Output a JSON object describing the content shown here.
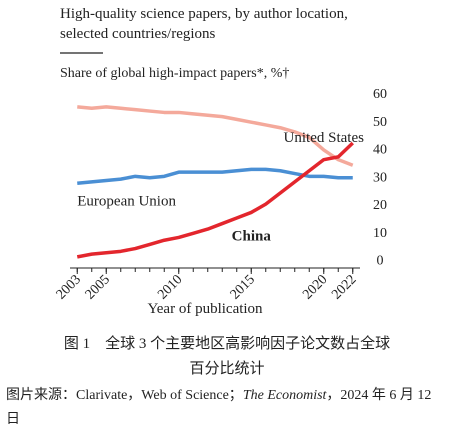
{
  "chart_data": {
    "type": "line",
    "title": [
      "High-quality science papers, by author location,",
      "selected countries/regions"
    ],
    "subtitle": "Share of global high-impact papers*, %†",
    "x_label": "Year of publication",
    "x": [
      2003,
      2004,
      2005,
      2006,
      2007,
      2008,
      2009,
      2010,
      2011,
      2012,
      2013,
      2014,
      2015,
      2016,
      2017,
      2018,
      2019,
      2020,
      2021,
      2022
    ],
    "series": [
      {
        "name": "United States",
        "color": "#f4a99b",
        "values": [
          55,
          54.5,
          55,
          54.5,
          54,
          53.5,
          53,
          53,
          52.5,
          52,
          51.5,
          50.5,
          49.5,
          48.5,
          47.5,
          46,
          44,
          39.5,
          36,
          34
        ]
      },
      {
        "name": "European Union",
        "color": "#4a8fd4",
        "values": [
          27.5,
          28,
          28.5,
          29,
          30,
          29.5,
          30,
          31.5,
          31.5,
          31.5,
          31.5,
          32,
          32.5,
          32.5,
          32,
          31,
          30,
          30,
          29.5,
          29.5
        ]
      },
      {
        "name": "China",
        "color": "#e3262d",
        "values": [
          1,
          2,
          2.5,
          3,
          4,
          5.5,
          7,
          8,
          9.5,
          11,
          13,
          15,
          17,
          20,
          24,
          28,
          32,
          36,
          37,
          42
        ]
      }
    ],
    "xlim": [
      2002.5,
      2022.5
    ],
    "xticks": [
      2003,
      2005,
      2010,
      2015,
      2020,
      2022
    ],
    "ylim": [
      -3,
      60
    ],
    "yticks": [
      0,
      10,
      20,
      30,
      40,
      50,
      60
    ],
    "y_axis_side": "right",
    "grid": false
  },
  "caption": [
    "图 1　全球 3 个主要地区高影响因子论文数占全球",
    "百分比统计"
  ],
  "source": [
    "图片来源：Clarivate，Web of Science；",
    "The Economist",
    "，2024 年 6 月 12 日"
  ]
}
